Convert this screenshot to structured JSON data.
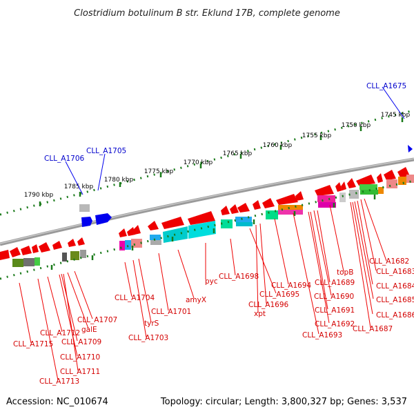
{
  "title": "Clostridium botulinum B str. Eklund 17B, complete genome",
  "footer": {
    "accession": "Accession: NC_010674",
    "summary": "Topology: circular; Length: 3,800,327 bp; Genes: 3,537"
  },
  "scale_labels": [
    "1790 kbp",
    "1785 kbp",
    "1780 kbp",
    "1775 kbp",
    "1770 kbp",
    "1765 kbp",
    "1760 kbp",
    "1755 kbp",
    "1750 kbp",
    "1745 kbp"
  ],
  "gene_labels_top": [
    "CLL_A1675",
    "CLL_A1705",
    "CLL_A1706"
  ],
  "gene_labels_bottom": [
    "CLL_A1682",
    "topB",
    "CLL_A1683",
    "CLL_A1689",
    "CLL_A1684",
    "CLL_A1694",
    "CLL_A1690",
    "CLL_A1685",
    "CLL_A1695",
    "CLL_A1691",
    "CLL_A1698",
    "CLL_A1696",
    "CLL_A1686",
    "pyc",
    "xpt",
    "CLL_A1692",
    "CLL_A1687",
    "amyX",
    "CLL_A1704",
    "CLL_A1693",
    "CLL_A1701",
    "CLL_A1707",
    "tyrS",
    "galE",
    "CLL_A1712",
    "CLL_A1703",
    "CLL_A1709",
    "CLL_A1715",
    "CLL_A1710",
    "CLL_A1711",
    "CLL_A1713"
  ],
  "colors": {
    "forward_gene": "#0000ee",
    "reverse_gene": "#ee0000",
    "backbone": "#888888",
    "scale_tick": "#1a7a1a",
    "label_red": "#d40000",
    "label_blue": "#0000cc"
  }
}
